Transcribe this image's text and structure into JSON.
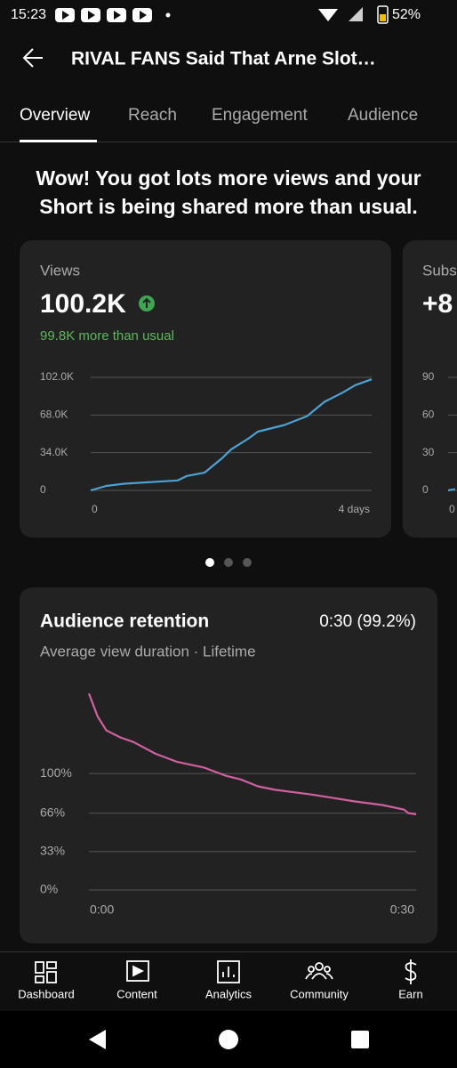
{
  "status_bar": {
    "time": "15:23",
    "battery": "52%"
  },
  "header": {
    "title": "RIVAL FANS Said That Arne Slot…"
  },
  "tabs": [
    "Overview",
    "Reach",
    "Engagement",
    "Audience"
  ],
  "headline": "Wow! You got lots more views and your Short is being shared more than usual.",
  "views_card": {
    "label": "Views",
    "value": "100.2K",
    "note": "99.8K more than usual",
    "chart": {
      "type": "line",
      "color": "#4aa3d4",
      "x": [
        0,
        0.22,
        0.48,
        1.24,
        1.37,
        1.62,
        1.87,
        2.0,
        2.25,
        2.38,
        2.76,
        3.08,
        3.33,
        3.58,
        3.77,
        4
      ],
      "values": [
        0,
        4000,
        6000,
        9000,
        13000,
        16000,
        29000,
        37000,
        47000,
        53000,
        59000,
        67000,
        80000,
        88000,
        95000,
        100200
      ],
      "xlim": [
        0,
        4
      ],
      "xticks": [
        {
          "value": 0,
          "label": "0"
        },
        {
          "value": 4,
          "label": "4 days"
        }
      ],
      "ylim": [
        0,
        102000
      ],
      "yticks": [
        0,
        {
          "value": 34000,
          "label": "34.0K"
        },
        {
          "value": 68000,
          "label": "68.0K"
        },
        {
          "value": 102000,
          "label": "102.0K"
        }
      ]
    }
  },
  "subs_card": {
    "label": "Subs",
    "value": "+8",
    "chart": {
      "type": "line",
      "color": "#4aa3d4",
      "x": [
        0,
        0.1
      ],
      "values": [
        0,
        1
      ],
      "xlim": [
        0,
        4
      ],
      "xticks": [
        0
      ],
      "ylim": [
        0,
        90
      ],
      "yticks": [
        0,
        30,
        60,
        90
      ]
    }
  },
  "retention_card": {
    "title": "Audience retention",
    "value": "0:30 (99.2%)",
    "subtitle": "Average view duration · Lifetime",
    "chart": {
      "type": "line",
      "color": "#d0609f",
      "x": [
        0,
        0.8,
        1.6,
        2.9,
        4.1,
        6.1,
        8.1,
        10.6,
        12.6,
        13.9,
        15.5,
        17.1,
        20.4,
        22.4,
        24.4,
        26.9,
        28.9,
        29.3,
        30
      ],
      "values": [
        168.7,
        149,
        137,
        131,
        127,
        117,
        110,
        105,
        98,
        95,
        89,
        86,
        82,
        79,
        76,
        73,
        69,
        66,
        65
      ],
      "xlim": [
        0,
        30
      ],
      "xticks": [
        {
          "value": 0,
          "label": "0:00"
        },
        {
          "value": 30,
          "label": "0:30"
        }
      ],
      "ylim": [
        0,
        175
      ],
      "yticks": [
        {
          "value": 0,
          "label": "0%"
        },
        {
          "value": 33,
          "label": "33%"
        },
        {
          "value": 66,
          "label": "66%"
        },
        {
          "value": 100,
          "label": "100%"
        }
      ]
    }
  },
  "nav": [
    "Dashboard",
    "Content",
    "Analytics",
    "Community",
    "Earn"
  ]
}
